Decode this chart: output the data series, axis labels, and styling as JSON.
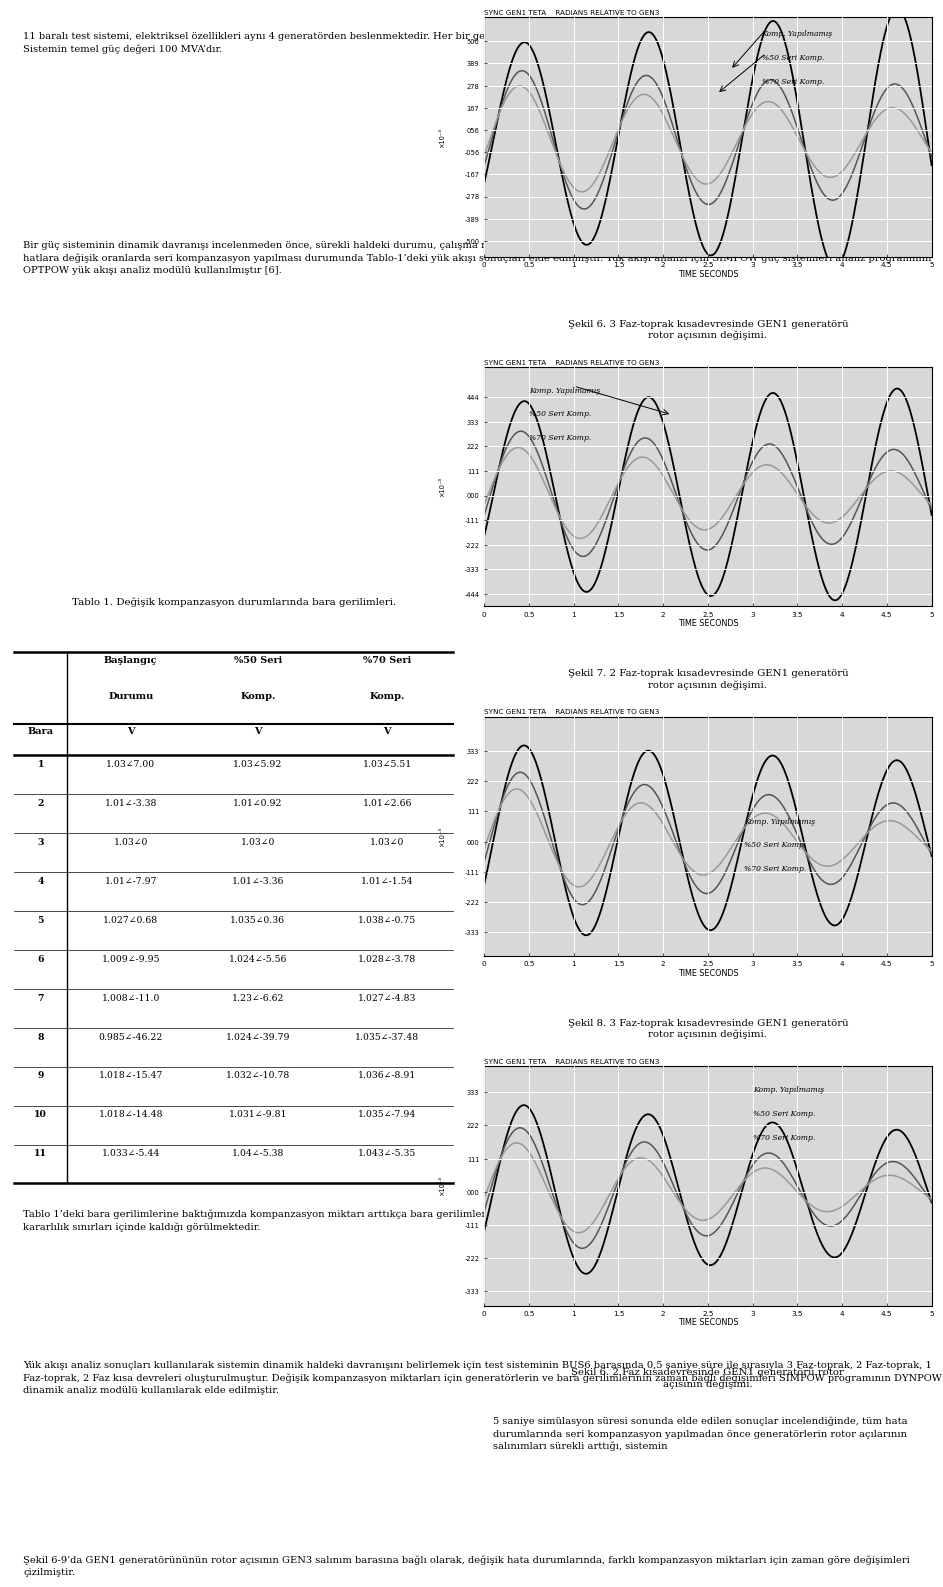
{
  "title_text": "Tablo 1. Değişik kompanzasyon durumlarında bara gerilimleri.",
  "table_data": [
    [
      "1",
      "1.03∠7.00",
      "1.03∠5.92",
      "1.03∠5.51"
    ],
    [
      "2",
      "1.01∠-3.38",
      "1.01∠0.92",
      "1.01∠2.66"
    ],
    [
      "3",
      "1.03∠0",
      "1.03∠0",
      "1.03∠0"
    ],
    [
      "4",
      "1.01∠-7.97",
      "1.01∠-3.36",
      "1.01∠-1.54"
    ],
    [
      "5",
      "1.027∠0.68",
      "1.035∠0.36",
      "1.038∠-0.75"
    ],
    [
      "6",
      "1.009∠-9.95",
      "1.024∠-5.56",
      "1.028∠-3.78"
    ],
    [
      "7",
      "1.008∠-11.0",
      "1.23∠-6.62",
      "1.027∠-4.83"
    ],
    [
      "8",
      "0.985∠-46.22",
      "1.024∠-39.79",
      "1.035∠-37.48"
    ],
    [
      "9",
      "1.018∠-15.47",
      "1.032∠-10.78",
      "1.036∠-8.91"
    ],
    [
      "10",
      "1.018∠-14.48",
      "1.031∠-9.81",
      "1.035∠-7.94"
    ],
    [
      "11",
      "1.033∠-5.44",
      "1.04∠-5.38",
      "1.043∠-5.35"
    ]
  ],
  "left_paragraphs": [
    "11 baralı test sistemi, elektriksel özellikleri aynı 4 generatörden beslenmektedir. Her bir generatörün gücü 700 MVA’dir. Sistem orta noktası olan 8 No’lu babaya göre simetriktir. Sistemin temel güç değeri 100 MVA’dır.",
    "Bir güç sisteminin dinamik davranışı incelenmeden önce, sürekli haldeki durumu, çalışma noktası belirlenmelidir. Bunun için test sisteminin 5-6 ve 10-11 Nolu baraları arasındaki hatlara değişik oranlarda seri kompanzasyon yapılması durumunda Tablo-1’deki yük akışı sonuçları elde edilmiştir. Yük akışı analizi için SIMPOW güç sistemleri analiz programının OPTPOW yük akışı analiz modülü kullanılmıştır [6].",
    "Tablo 1’deki bara gerilimlerine baktığımızda kompanzasyon miktarı arttıkça bara gerilimlerinin arttığı fakat tüm kompanzasyon oranlarında bara gerilimlerinin sürekli hal gerilim kararlılık sınırları içinde kaldığı görülmektedir.",
    "Yük akışı analiz sonuçları kullanılarak sistemin dinamik haldeki davranışını belirlemek için test sisteminin BUS6 barasında 0,5 saniye süre ile sırasıyla 3 Faz-toprak, 2 Faz-toprak, 1 Faz-toprak, 2 Faz kısa devreleri oluşturulmuştur. Değişik kompanzasyon miktarları için generatörlerin ve bara gerilimlerinin zaman bağlı değişimleri SIMPOW programının DYNPOW dinamik analiz modülü kullanılarak elde edilmiştir.",
    "Şekil 6-9’da GEN1 generatörününün rotor açısının GEN3 salınım barasına bağlı olarak, değişik hata durumlarında, farklı kompanzasyon miktarları için zaman göre değişimleri çizilmiştir."
  ],
  "right_captions": [
    "Şekil 6. 3 Faz-toprak kısadevresinde GEN1 generatörü\nrotor açısının değişimi.",
    "Şekil 7. 2 Faz-toprak kısadevresinde GEN1 generatörü\nrotor açısının değişimi.",
    "Şekil 8. 3 Faz-toprak kısadevresinde GEN1 generatörü\nrotor açısının değişimi.",
    "Şekil 6. 2 Faz kısadevresinde GEN1 generatörü rotor\naçısının değişimi."
  ],
  "bottom_text": "5 saniye simülasyon süresi sonunda elde edilen sonuçlar incelendiğinde, tüm hata durumlarında seri kompanzasyon yapılmadan önce generatörlerin rotor açılarının salınımları sürekli arttığı, sistemin",
  "graph_title": "SYNC GEN1 TETA    RADIANS RELATIVE TO GEN3",
  "legend_labels": [
    "Komp. Yapılmamış",
    "%50 Seri Komp.",
    "%70 Seri Komp."
  ],
  "time_label": "TIME SECONDS",
  "bg_color": "#ffffff",
  "graph_bg": "#d8d8d8",
  "grid_color": "#ffffff"
}
